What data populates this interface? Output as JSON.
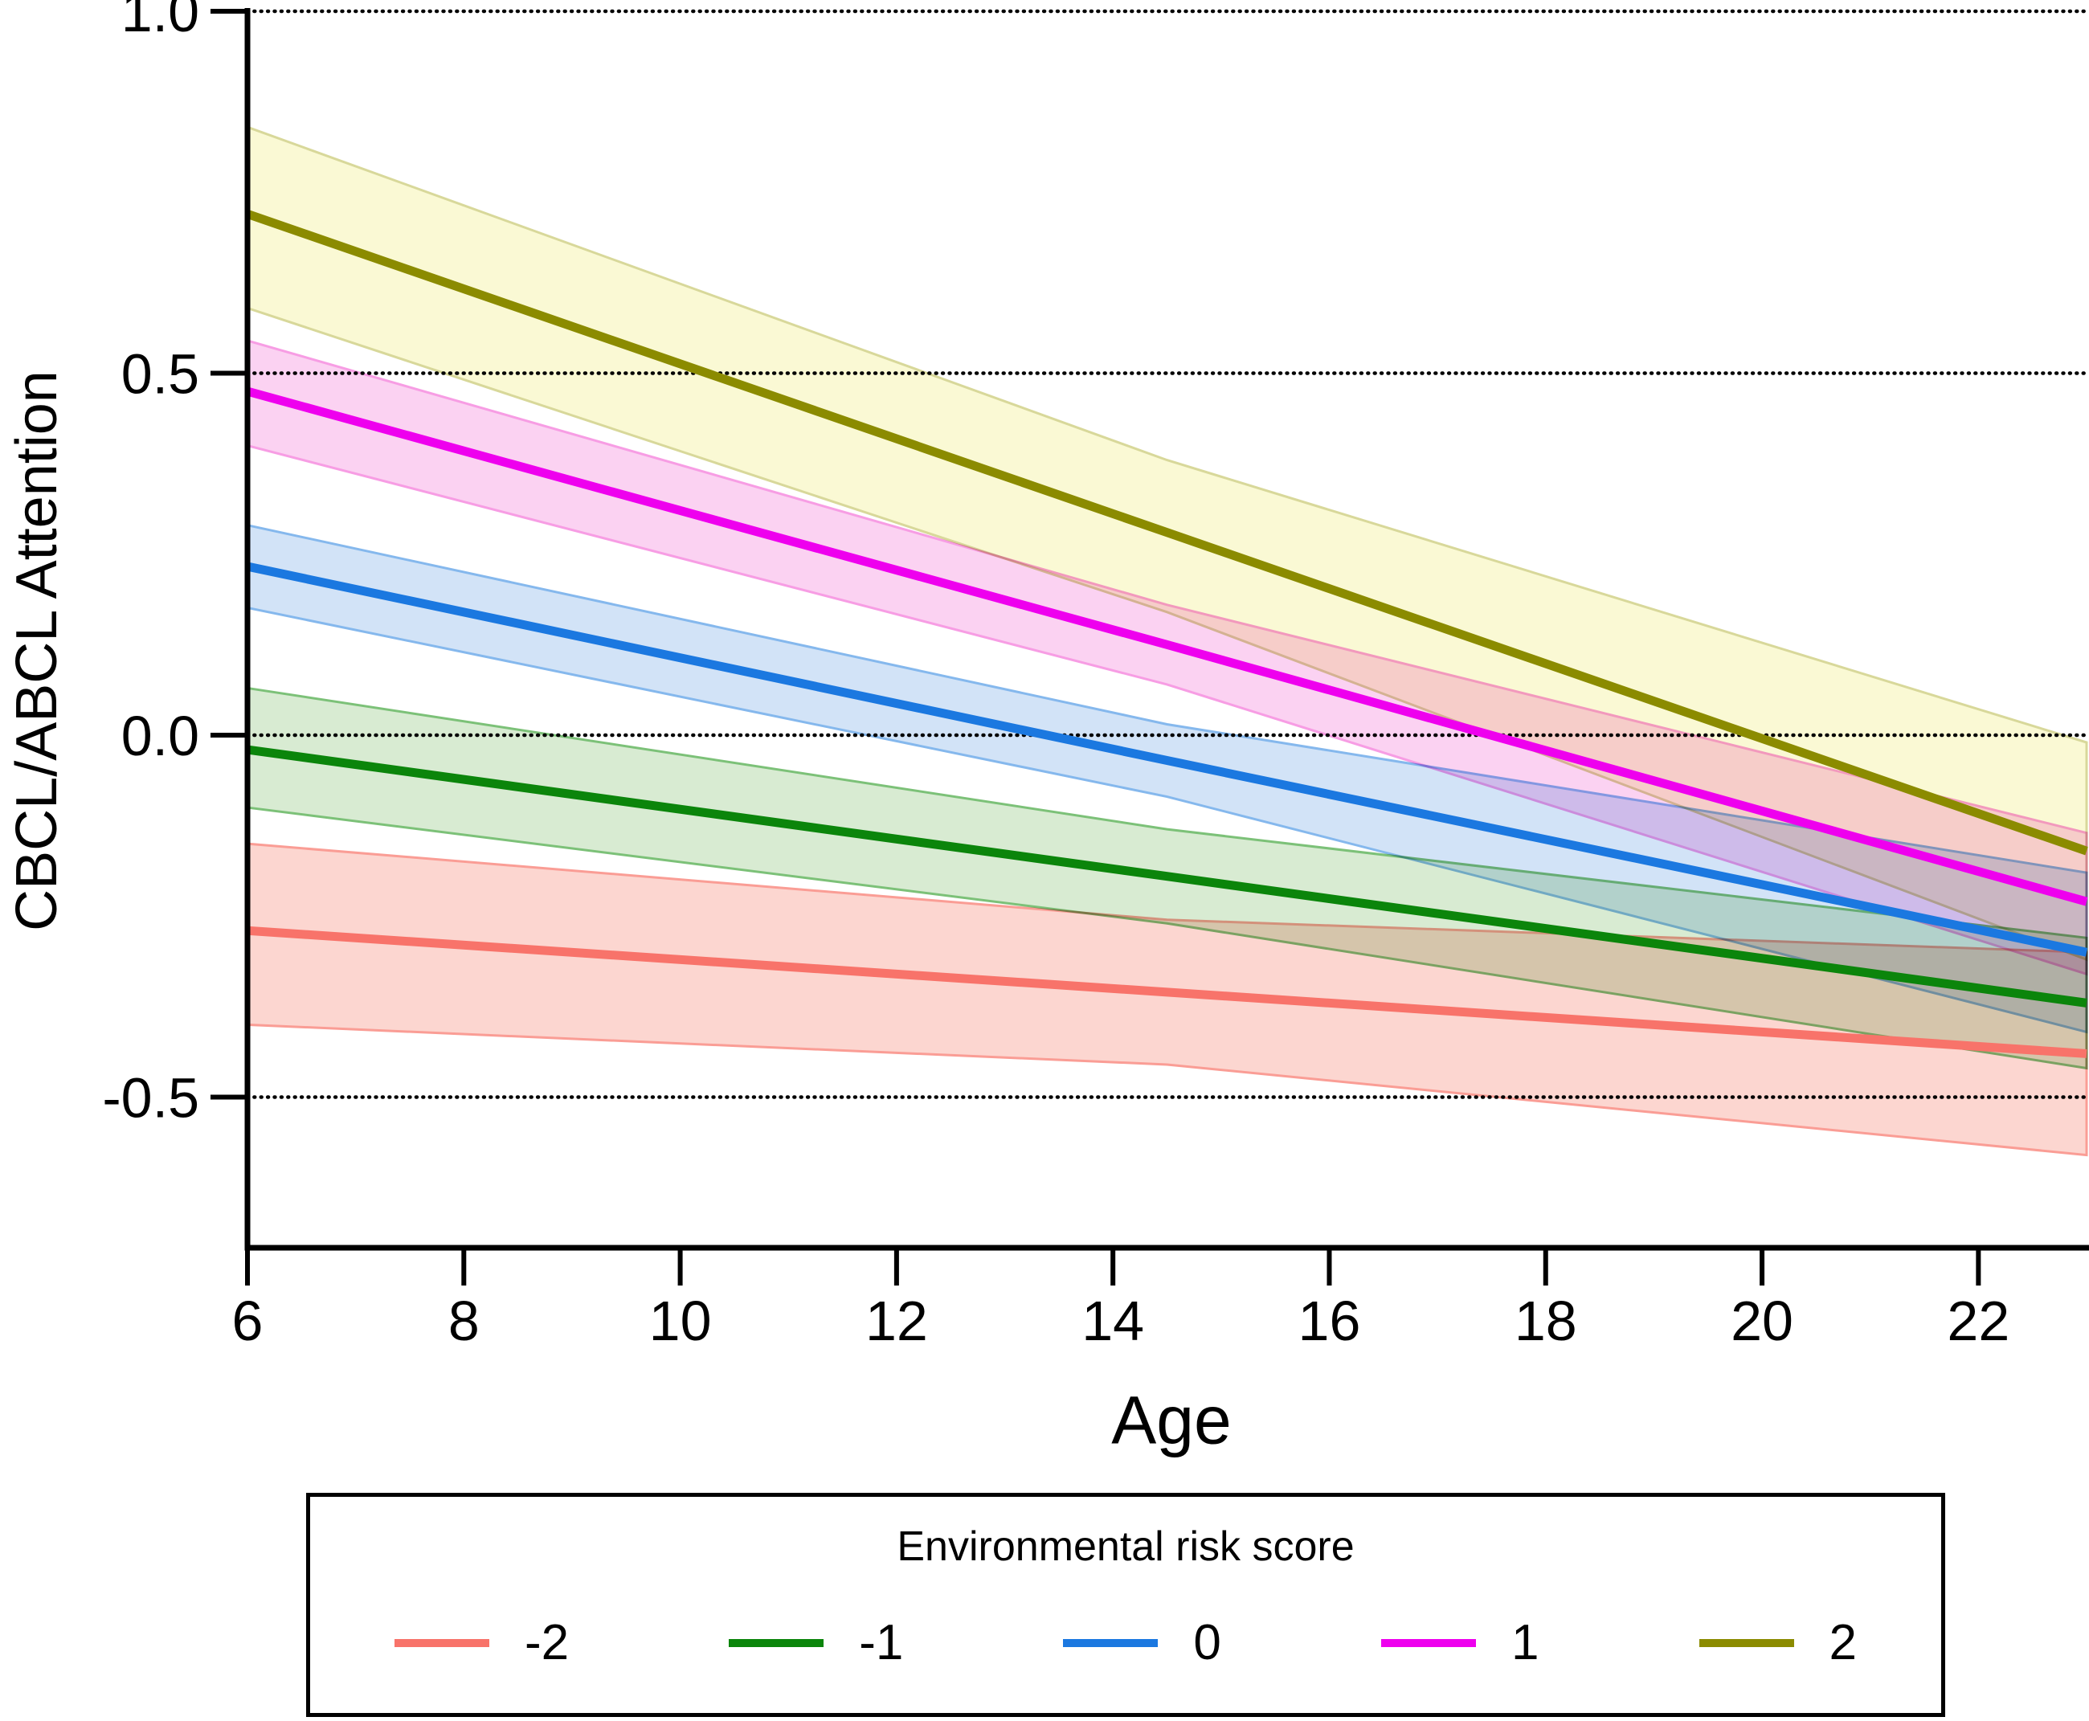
{
  "chart_data": {
    "type": "line",
    "title": "",
    "xlabel": "Age",
    "ylabel": "CBCL/ABCL Attention",
    "xlim": [
      6,
      23
    ],
    "ylim": [
      -0.71,
      1.0
    ],
    "x_ticks": [
      6,
      8,
      10,
      12,
      14,
      16,
      18,
      20,
      22
    ],
    "y_ticks": [
      1.0,
      0.5,
      0.0,
      -0.5
    ],
    "y_tick_labels": [
      "1.0",
      "0.5",
      "0.0",
      "-0.5"
    ],
    "grid": "dotted horizontal gridlines at each y tick, drawn across full plot width",
    "legend": {
      "title": "Environmental risk score",
      "position": "boxed, centered below x-axis title"
    },
    "series": [
      {
        "name": "-2",
        "line_color": "#F8736A",
        "fill_color": "#FCD6D0",
        "edge_color": "#FA9D95",
        "x": [
          6,
          14.5,
          23
        ],
        "y": [
          -0.27,
          -0.355,
          -0.44
        ],
        "ci_upper": [
          -0.15,
          -0.255,
          -0.3
        ],
        "ci_lower": [
          -0.4,
          -0.455,
          -0.58
        ]
      },
      {
        "name": "-1",
        "line_color": "#0B850B",
        "fill_color": "#D8EBD2",
        "edge_color": "#7CC178",
        "x": [
          6,
          14.5,
          23
        ],
        "y": [
          -0.02,
          -0.195,
          -0.37
        ],
        "ci_upper": [
          0.065,
          -0.13,
          -0.28
        ],
        "ci_lower": [
          -0.1,
          -0.26,
          -0.46
        ]
      },
      {
        "name": "0",
        "line_color": "#1B78E0",
        "fill_color": "#D2E3F7",
        "edge_color": "#85B8ED",
        "x": [
          6,
          14.5,
          23
        ],
        "y": [
          0.233,
          -0.035,
          -0.3
        ],
        "ci_upper": [
          0.29,
          0.015,
          -0.19
        ],
        "ci_lower": [
          0.176,
          -0.085,
          -0.41
        ]
      },
      {
        "name": "1",
        "line_color": "#EE00EE",
        "fill_color": "#FBD2F2",
        "edge_color": "#F79DE4",
        "x": [
          6,
          14.5,
          23
        ],
        "y": [
          0.475,
          0.125,
          -0.23
        ],
        "ci_upper": [
          0.545,
          0.18,
          -0.135
        ],
        "ci_lower": [
          0.4,
          0.07,
          -0.33
        ]
      },
      {
        "name": "2",
        "line_color": "#8B8B00",
        "fill_color": "#FAF9D4",
        "edge_color": "#D8D89A",
        "x": [
          6,
          14.5,
          23
        ],
        "y": [
          0.72,
          0.28,
          -0.16
        ],
        "ci_upper": [
          0.84,
          0.38,
          -0.01
        ],
        "ci_lower": [
          0.59,
          0.17,
          -0.31
        ]
      }
    ]
  }
}
